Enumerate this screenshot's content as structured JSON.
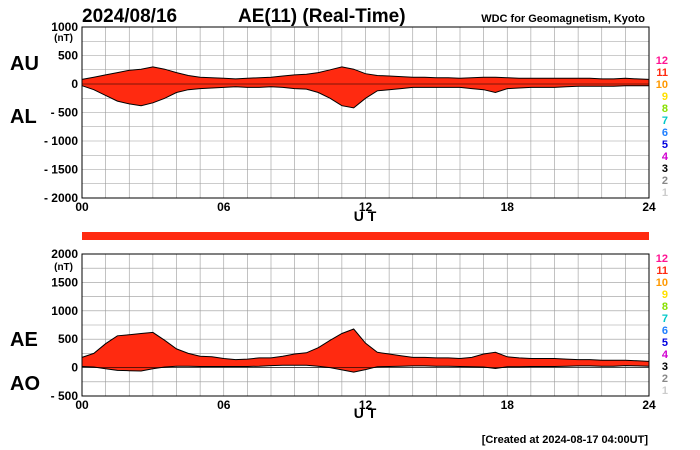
{
  "header": {
    "date": "2024/08/16",
    "title": "AE(11) (Real-Time)",
    "source": "WDC for Geomagnetism, Kyoto"
  },
  "footer": {
    "created": "[Created at 2024-08-17 04:00UT]"
  },
  "colors": {
    "fill": "#ff2a10",
    "line": "#000000",
    "grid": "#9a9a9a",
    "station_bar": "#ff2a10"
  },
  "station_legend": [
    {
      "label": "12",
      "color": "#ff1493"
    },
    {
      "label": "11",
      "color": "#ff2a10"
    },
    {
      "label": "10",
      "color": "#ff9900"
    },
    {
      "label": "9",
      "color": "#ffe000"
    },
    {
      "label": "8",
      "color": "#88e000"
    },
    {
      "label": "7",
      "color": "#00c8c8"
    },
    {
      "label": "6",
      "color": "#1f7fff"
    },
    {
      "label": "5",
      "color": "#0000e0"
    },
    {
      "label": "4",
      "color": "#d000d0"
    },
    {
      "label": "3",
      "color": "#000000"
    },
    {
      "label": "2",
      "color": "#888888"
    },
    {
      "label": "1",
      "color": "#cccccc"
    }
  ],
  "chart_data": [
    {
      "type": "area",
      "name": "AU/AL",
      "upper_label": "AU",
      "lower_label": "AL",
      "unit": "(nT)",
      "xlabel": "U T",
      "xlim": [
        0,
        24
      ],
      "ylim": [
        -2000,
        1000
      ],
      "x_ticks": [
        "00",
        "06",
        "12",
        "18",
        "24"
      ],
      "y_ticks": [
        "1000",
        "500",
        "0",
        "- 500",
        "- 1000",
        "- 1500",
        "- 2000"
      ],
      "grid": true,
      "x": [
        0,
        0.5,
        1,
        1.5,
        2,
        2.5,
        3,
        3.5,
        4,
        4.5,
        5,
        5.5,
        6,
        6.5,
        7,
        7.5,
        8,
        8.5,
        9,
        9.5,
        10,
        10.5,
        11,
        11.5,
        12,
        12.5,
        13,
        13.5,
        14,
        14.5,
        15,
        15.5,
        16,
        16.5,
        17,
        17.5,
        18,
        18.5,
        19,
        19.5,
        20,
        20.5,
        21,
        21.5,
        22,
        22.5,
        23,
        23.5,
        24
      ],
      "series": [
        {
          "name": "AU",
          "values": [
            80,
            120,
            160,
            200,
            240,
            260,
            300,
            260,
            200,
            150,
            120,
            110,
            100,
            90,
            100,
            110,
            120,
            140,
            160,
            170,
            200,
            250,
            300,
            260,
            180,
            150,
            140,
            130,
            120,
            120,
            110,
            110,
            100,
            110,
            120,
            120,
            110,
            100,
            100,
            100,
            100,
            100,
            100,
            100,
            90,
            90,
            100,
            90,
            80
          ]
        },
        {
          "name": "AL",
          "values": [
            -30,
            -100,
            -200,
            -300,
            -350,
            -380,
            -330,
            -250,
            -150,
            -100,
            -80,
            -70,
            -60,
            -50,
            -60,
            -60,
            -50,
            -60,
            -80,
            -90,
            -150,
            -250,
            -380,
            -420,
            -250,
            -120,
            -100,
            -80,
            -60,
            -60,
            -60,
            -60,
            -60,
            -80,
            -100,
            -150,
            -80,
            -70,
            -60,
            -60,
            -60,
            -50,
            -40,
            -40,
            -40,
            -40,
            -30,
            -30,
            -30
          ]
        }
      ]
    },
    {
      "type": "area",
      "name": "AE/AO",
      "upper_label": "AE",
      "lower_label": "AO",
      "unit": "(nT)",
      "xlabel": "U T",
      "xlim": [
        0,
        24
      ],
      "ylim": [
        -500,
        2000
      ],
      "x_ticks": [
        "00",
        "06",
        "12",
        "18",
        "24"
      ],
      "y_ticks": [
        "2000",
        "1500",
        "1000",
        "500",
        "0",
        "- 500"
      ],
      "grid": true,
      "x": [
        0,
        0.5,
        1,
        1.5,
        2,
        2.5,
        3,
        3.5,
        4,
        4.5,
        5,
        5.5,
        6,
        6.5,
        7,
        7.5,
        8,
        8.5,
        9,
        9.5,
        10,
        10.5,
        11,
        11.5,
        12,
        12.5,
        13,
        13.5,
        14,
        14.5,
        15,
        15.5,
        16,
        16.5,
        17,
        17.5,
        18,
        18.5,
        19,
        19.5,
        20,
        20.5,
        21,
        21.5,
        22,
        22.5,
        23,
        23.5,
        24
      ],
      "series": [
        {
          "name": "AE",
          "values": [
            180,
            250,
            420,
            560,
            580,
            600,
            620,
            480,
            330,
            250,
            200,
            190,
            160,
            140,
            150,
            170,
            170,
            200,
            240,
            260,
            350,
            480,
            600,
            680,
            430,
            270,
            240,
            210,
            180,
            180,
            170,
            170,
            160,
            180,
            240,
            270,
            190,
            170,
            160,
            160,
            160,
            150,
            140,
            140,
            130,
            130,
            130,
            120,
            110
          ]
        },
        {
          "name": "AO",
          "values": [
            20,
            10,
            -20,
            -50,
            -55,
            -60,
            -20,
            10,
            25,
            25,
            20,
            20,
            20,
            20,
            20,
            25,
            35,
            40,
            40,
            40,
            25,
            0,
            -40,
            -80,
            -35,
            15,
            20,
            25,
            30,
            30,
            25,
            25,
            20,
            15,
            10,
            -15,
            15,
            15,
            20,
            20,
            20,
            25,
            30,
            30,
            25,
            25,
            35,
            30,
            25
          ]
        }
      ]
    }
  ]
}
